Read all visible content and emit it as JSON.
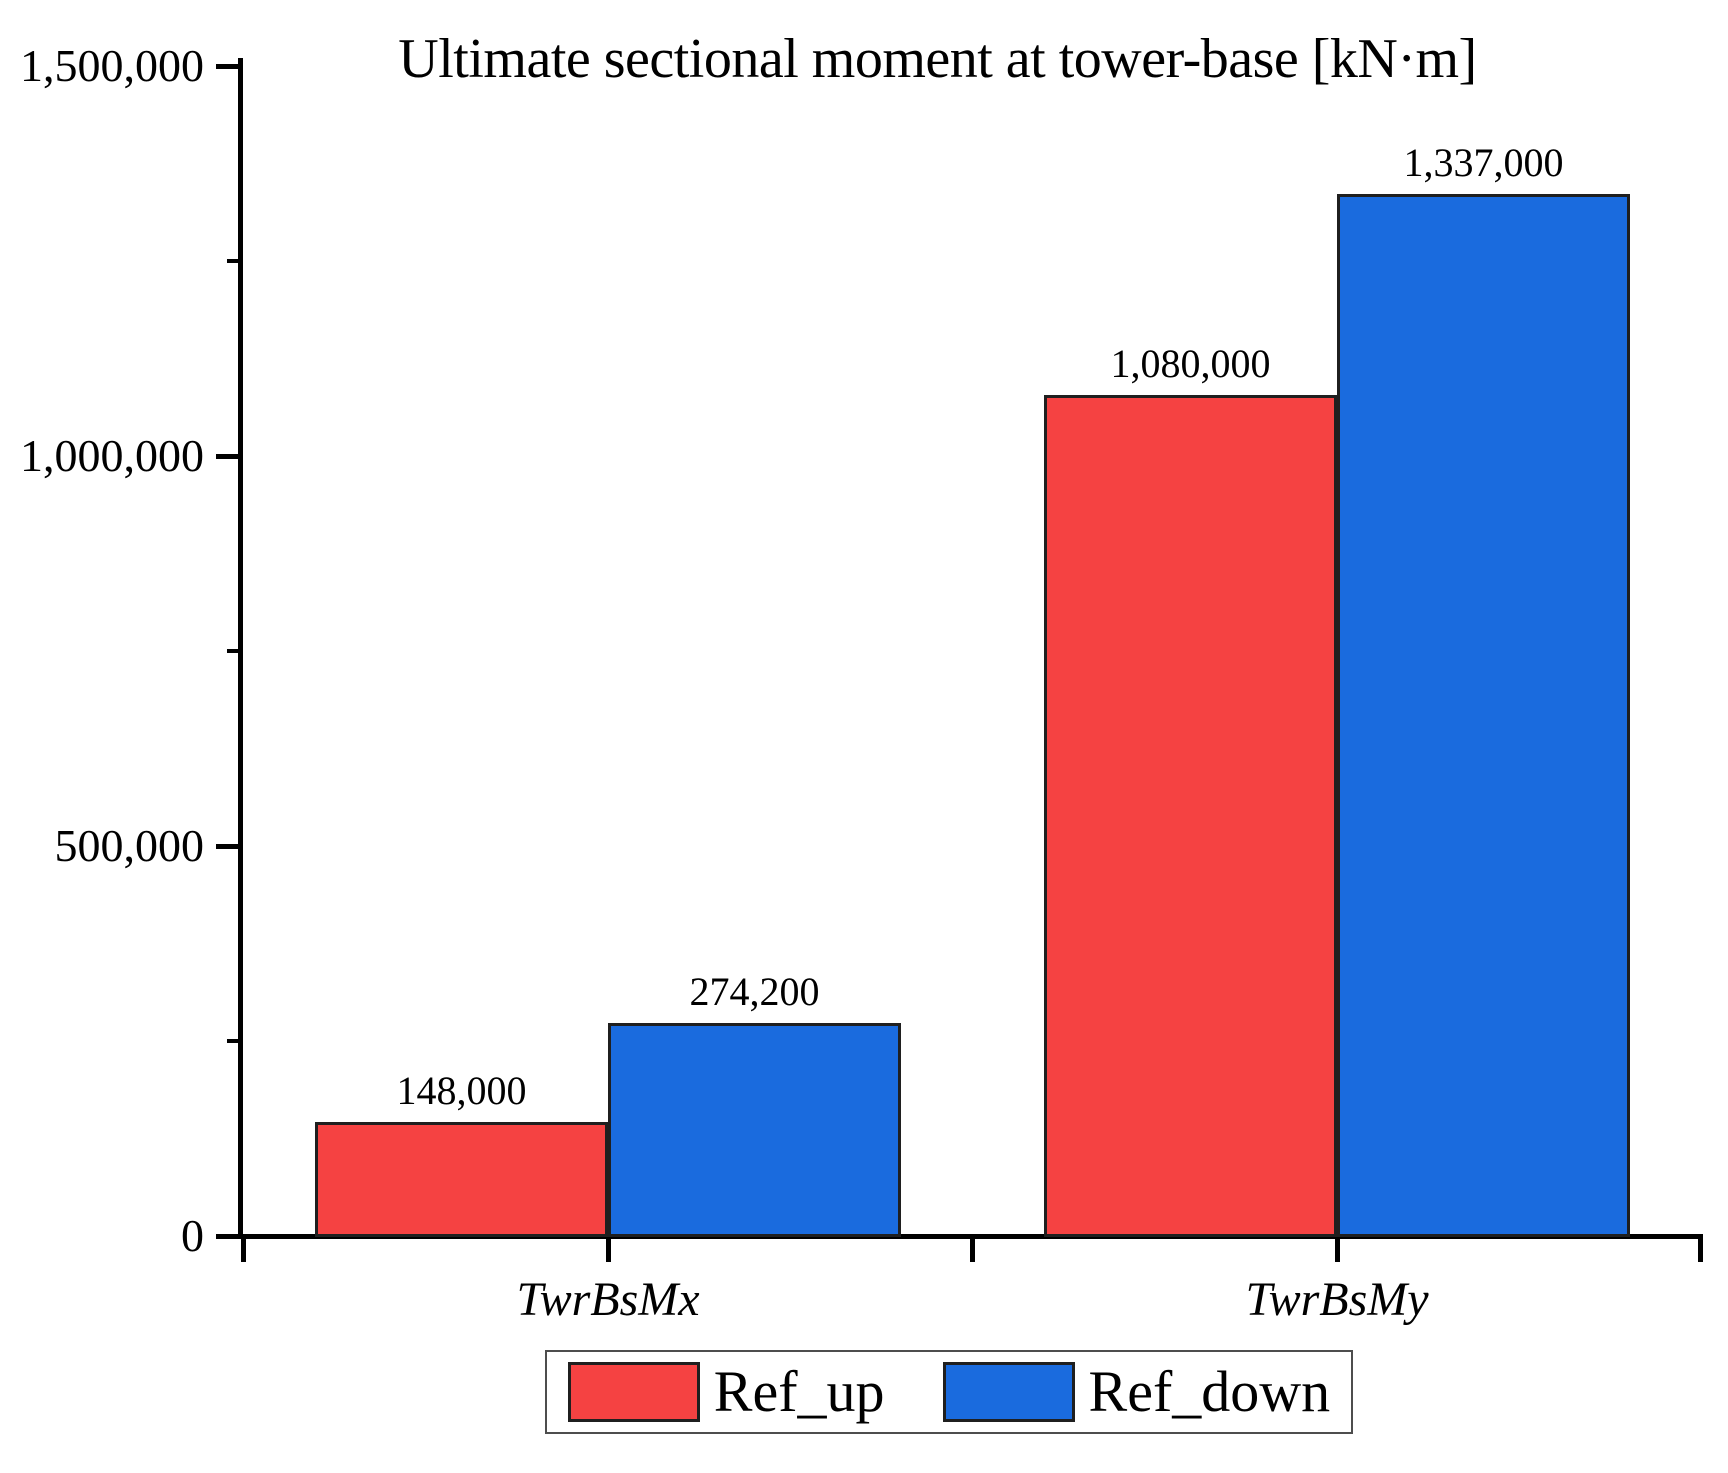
{
  "chart_data": {
    "type": "bar",
    "title": "Ultimate sectional moment at tower-base [kN·m]",
    "categories": [
      "TwrBsMx",
      "TwrBsMy"
    ],
    "series": [
      {
        "name": "Ref_up",
        "color": "#f54242",
        "values": [
          148000,
          1080000
        ],
        "labels": [
          "148,000",
          "1,080,000"
        ]
      },
      {
        "name": "Ref_down",
        "color": "#1a6bde",
        "values": [
          274200,
          1337000
        ],
        "labels": [
          "274,200",
          "1,337,000"
        ]
      }
    ],
    "ylim": [
      0,
      1500000
    ],
    "ytick_values": [
      0,
      500000,
      1000000,
      1500000
    ],
    "ytick_labels": [
      "0",
      "500,000",
      "1,000,000",
      "1,500,000"
    ],
    "yminor_values": [
      250000,
      750000,
      1250000
    ],
    "xlabel": "",
    "ylabel": "",
    "grid": false,
    "legend_position": "bottom",
    "bar_value_labels_shown": true
  },
  "colors": {
    "ref_up": "#f54242",
    "ref_down": "#1a6bde",
    "bar_border": "#1f1f1f",
    "axis": "#000000",
    "legend_border": "#4d4d4d"
  }
}
